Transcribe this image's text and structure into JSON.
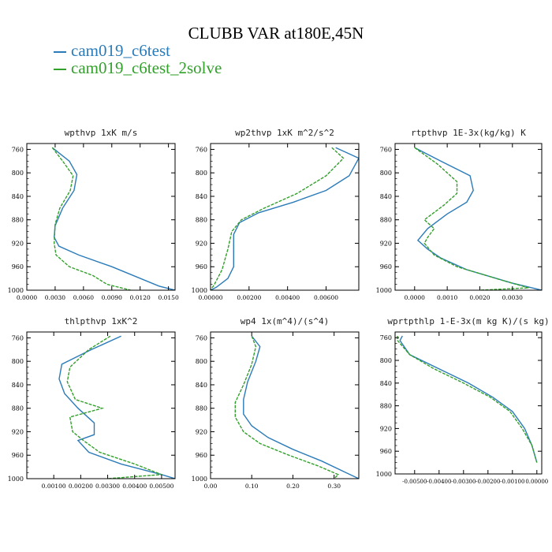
{
  "figure": {
    "title": "CLUBB VAR at180E,45N",
    "legend": [
      {
        "label": "cam019_c6test",
        "color": "#2b7bb9"
      },
      {
        "label": "cam019_c6test_2solve",
        "color": "#33a02c"
      }
    ]
  },
  "chart_data": [
    {
      "type": "line",
      "title": "wpthvp  1xK m/s",
      "ylim": [
        1000,
        750
      ],
      "yticks": [
        760,
        800,
        840,
        880,
        920,
        960,
        1000
      ],
      "xlim": [
        0.0,
        0.0157
      ],
      "xticks": [
        0.0,
        0.003,
        0.006,
        0.009,
        0.012,
        0.015
      ],
      "xtick_labels": [
        "0.0000",
        "0.0030",
        "0.0060",
        "0.0090",
        "0.0120",
        "0.0150"
      ],
      "series": [
        {
          "name": "cam019_c6test",
          "x": [
            0.0027,
            0.0045,
            0.0053,
            0.005,
            0.0038,
            0.003,
            0.0029,
            0.0034,
            0.0055,
            0.009,
            0.014,
            0.0157
          ],
          "y": [
            757,
            780,
            803,
            830,
            860,
            890,
            910,
            925,
            940,
            960,
            993,
            1000
          ]
        },
        {
          "name": "cam019_c6test_2solve",
          "x": [
            0.0027,
            0.0038,
            0.0049,
            0.0046,
            0.0035,
            0.003,
            0.0029,
            0.0031,
            0.0045,
            0.007,
            0.0085,
            0.011
          ],
          "y": [
            757,
            780,
            805,
            830,
            860,
            888,
            920,
            940,
            960,
            975,
            990,
            1000
          ]
        }
      ]
    },
    {
      "type": "line",
      "title": "wp2thvp  1xK m^2/s^2",
      "ylim": [
        1000,
        750
      ],
      "yticks": [
        760,
        800,
        840,
        880,
        920,
        960,
        1000
      ],
      "xlim": [
        0.0,
        0.0077
      ],
      "xticks": [
        0.0,
        0.002,
        0.004,
        0.006
      ],
      "xtick_labels": [
        "0.00000",
        "0.00200",
        "0.00400",
        "0.00600"
      ],
      "series": [
        {
          "name": "cam019_c6test",
          "x": [
            0.0065,
            0.0077,
            0.0072,
            0.006,
            0.0043,
            0.0025,
            0.0015,
            0.0012,
            0.0012,
            0.0012,
            0.0009,
            0.0003,
            0.0
          ],
          "y": [
            757,
            775,
            805,
            830,
            850,
            868,
            885,
            905,
            930,
            960,
            980,
            995,
            1000
          ]
        },
        {
          "name": "cam019_c6test_2solve",
          "x": [
            0.0063,
            0.0069,
            0.006,
            0.0045,
            0.0028,
            0.0016,
            0.0011,
            0.0009,
            0.0006,
            0.0002,
            0.0
          ],
          "y": [
            757,
            775,
            805,
            835,
            860,
            880,
            900,
            930,
            965,
            990,
            1000
          ]
        }
      ]
    },
    {
      "type": "line",
      "title": "rtpthvp  1E-3x(kg/kg) K",
      "ylim": [
        1000,
        750
      ],
      "yticks": [
        760,
        800,
        840,
        880,
        920,
        960,
        1000
      ],
      "xlim": [
        -0.0006,
        0.0039
      ],
      "xticks": [
        0.0,
        0.001,
        0.002,
        0.003
      ],
      "xtick_labels": [
        "0.0000",
        "0.0010",
        "0.0020",
        "0.0030"
      ],
      "series": [
        {
          "name": "cam019_c6test",
          "x": [
            0.0,
            0.0008,
            0.0017,
            0.0018,
            0.0016,
            0.001,
            0.0004,
            0.0001,
            0.0004,
            0.0008,
            0.0016,
            0.003,
            0.0039
          ],
          "y": [
            757,
            780,
            805,
            830,
            850,
            870,
            895,
            915,
            930,
            945,
            965,
            988,
            1000
          ]
        },
        {
          "name": "cam019_c6test_2solve",
          "x": [
            0.0,
            0.0007,
            0.0013,
            0.0013,
            0.0009,
            0.0003,
            0.0006,
            0.0004,
            0.0003,
            0.0006,
            0.0013,
            0.0028,
            0.0035,
            0.002
          ],
          "y": [
            757,
            785,
            815,
            835,
            855,
            880,
            895,
            910,
            920,
            940,
            960,
            985,
            996,
            1000
          ]
        }
      ]
    },
    {
      "type": "line",
      "title": "thlpthvp  1xK^2",
      "ylim": [
        1000,
        750
      ],
      "yticks": [
        760,
        800,
        840,
        880,
        920,
        960,
        1000
      ],
      "xlim": [
        0.0,
        0.0055
      ],
      "xticks": [
        0.001,
        0.002,
        0.003,
        0.004,
        0.005
      ],
      "xtick_labels": [
        "0.00100",
        "0.00200",
        "0.00300",
        "0.00400",
        "0.00500"
      ],
      "series": [
        {
          "name": "cam019_c6test",
          "x": [
            0.0035,
            0.0024,
            0.0013,
            0.0012,
            0.0014,
            0.0019,
            0.0025,
            0.0025,
            0.0019,
            0.0023,
            0.0035,
            0.005,
            0.0055
          ],
          "y": [
            757,
            780,
            805,
            830,
            855,
            880,
            905,
            925,
            935,
            955,
            975,
            993,
            1000
          ]
        },
        {
          "name": "cam019_c6test_2solve",
          "x": [
            0.0031,
            0.0023,
            0.0016,
            0.0015,
            0.0018,
            0.0028,
            0.0016,
            0.0017,
            0.0021,
            0.0027,
            0.004,
            0.005,
            0.003
          ],
          "y": [
            757,
            780,
            810,
            835,
            865,
            880,
            895,
            920,
            935,
            955,
            975,
            993,
            1000
          ]
        }
      ]
    },
    {
      "type": "line",
      "title": "wp4  1x(m^4)/(s^4)",
      "ylim": [
        1000,
        750
      ],
      "yticks": [
        760,
        800,
        840,
        880,
        920,
        960,
        1000
      ],
      "xlim": [
        0.0,
        0.36
      ],
      "xticks": [
        0.0,
        0.1,
        0.2,
        0.3
      ],
      "xtick_labels": [
        "0.00",
        "0.10",
        "0.20",
        "0.30"
      ],
      "series": [
        {
          "name": "cam019_c6test",
          "x": [
            0.1,
            0.12,
            0.11,
            0.09,
            0.08,
            0.08,
            0.1,
            0.14,
            0.2,
            0.27,
            0.33,
            0.36
          ],
          "y": [
            757,
            775,
            800,
            835,
            865,
            890,
            910,
            930,
            950,
            970,
            990,
            1000
          ]
        },
        {
          "name": "cam019_c6test_2solve",
          "x": [
            0.1,
            0.11,
            0.1,
            0.08,
            0.06,
            0.06,
            0.08,
            0.12,
            0.19,
            0.26,
            0.31,
            0.3
          ],
          "y": [
            757,
            775,
            805,
            840,
            870,
            895,
            920,
            940,
            960,
            978,
            993,
            1000
          ]
        }
      ]
    },
    {
      "type": "line",
      "title": "wprtpthlp  1-E-3x(m kg K)/(s kg)",
      "ylim": [
        1000,
        750
      ],
      "yticks": [
        760,
        800,
        840,
        880,
        920,
        960,
        1000
      ],
      "xlim": [
        -0.0058,
        0.0002
      ],
      "xticks": [
        -0.005,
        -0.004,
        -0.003,
        -0.002,
        -0.001,
        0.0
      ],
      "xtick_labels": [
        "-0.00500",
        "-0.00400",
        "-0.00300",
        "-0.00200",
        "-0.00100",
        "0.00000"
      ],
      "series": [
        {
          "name": "cam019_c6test",
          "x": [
            -0.0055,
            -0.0056,
            -0.0052,
            -0.004,
            -0.0028,
            -0.0018,
            -0.001,
            -0.0005,
            -0.0002,
            0.0
          ],
          "y": [
            757,
            765,
            790,
            815,
            840,
            865,
            890,
            920,
            950,
            980
          ]
        },
        {
          "name": "cam019_c6test_2solve",
          "x": [
            -0.0057,
            -0.0057,
            -0.0052,
            -0.0042,
            -0.003,
            -0.0019,
            -0.0011,
            -0.0006,
            -0.0002,
            0.0
          ],
          "y": [
            757,
            765,
            790,
            815,
            840,
            865,
            890,
            920,
            950,
            980
          ]
        }
      ]
    }
  ]
}
